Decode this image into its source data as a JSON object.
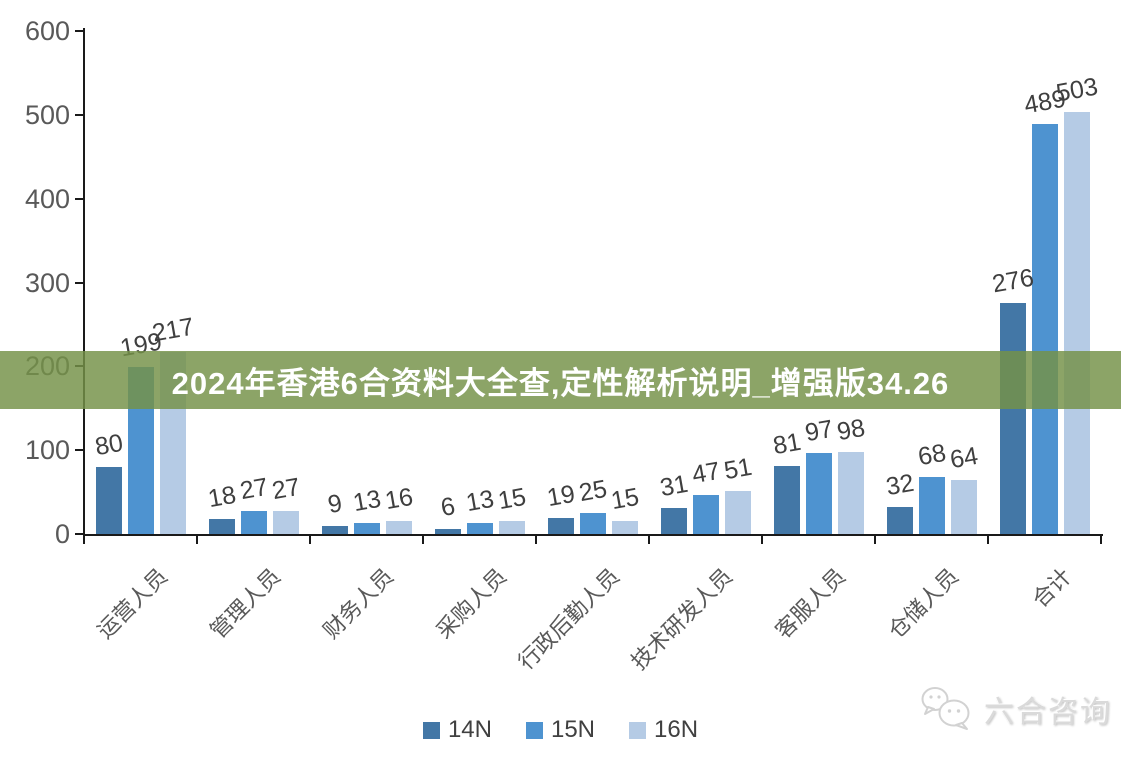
{
  "banner": {
    "text": "2024年香港6合资料大全查,定性解析说明_增强版34.26",
    "background_color": "#759248",
    "background_opacity": 0.83,
    "text_color": "#ffffff"
  },
  "watermark": {
    "icon": "wechat-chat-bubbles-icon",
    "text": "六合咨询"
  },
  "legend": {
    "position": "bottom",
    "items": [
      {
        "label": "14N",
        "color": "#4377A6"
      },
      {
        "label": "15N",
        "color": "#4E93D0"
      },
      {
        "label": "16N",
        "color": "#B5CBE5"
      }
    ]
  },
  "chart_data": {
    "type": "bar",
    "title": "",
    "xlabel": "",
    "ylabel": "",
    "categories": [
      "运营人员",
      "管理人员",
      "财务人员",
      "采购人员",
      "行政后勤人员",
      "技术研发人员",
      "客服人员",
      "仓储人员",
      "合计"
    ],
    "series": [
      {
        "name": "14N",
        "color": "#4377A6",
        "values": [
          80,
          18,
          9,
          6,
          19,
          31,
          81,
          32,
          276
        ]
      },
      {
        "name": "15N",
        "color": "#4E93D0",
        "values": [
          199,
          27,
          13,
          13,
          25,
          47,
          97,
          68,
          489
        ]
      },
      {
        "name": "16N",
        "color": "#B5CBE5",
        "values": [
          217,
          27,
          16,
          15,
          15,
          51,
          98,
          64,
          503
        ]
      }
    ],
    "ylim": [
      0,
      600
    ],
    "yticks": [
      0,
      100,
      200,
      300,
      400,
      500,
      600
    ],
    "grid": false,
    "legend_position": "bottom",
    "data_labels": true,
    "axis_color": "#1a1a1a",
    "tick_label_color": "#595959",
    "data_label_color": "#3f3f3f"
  }
}
